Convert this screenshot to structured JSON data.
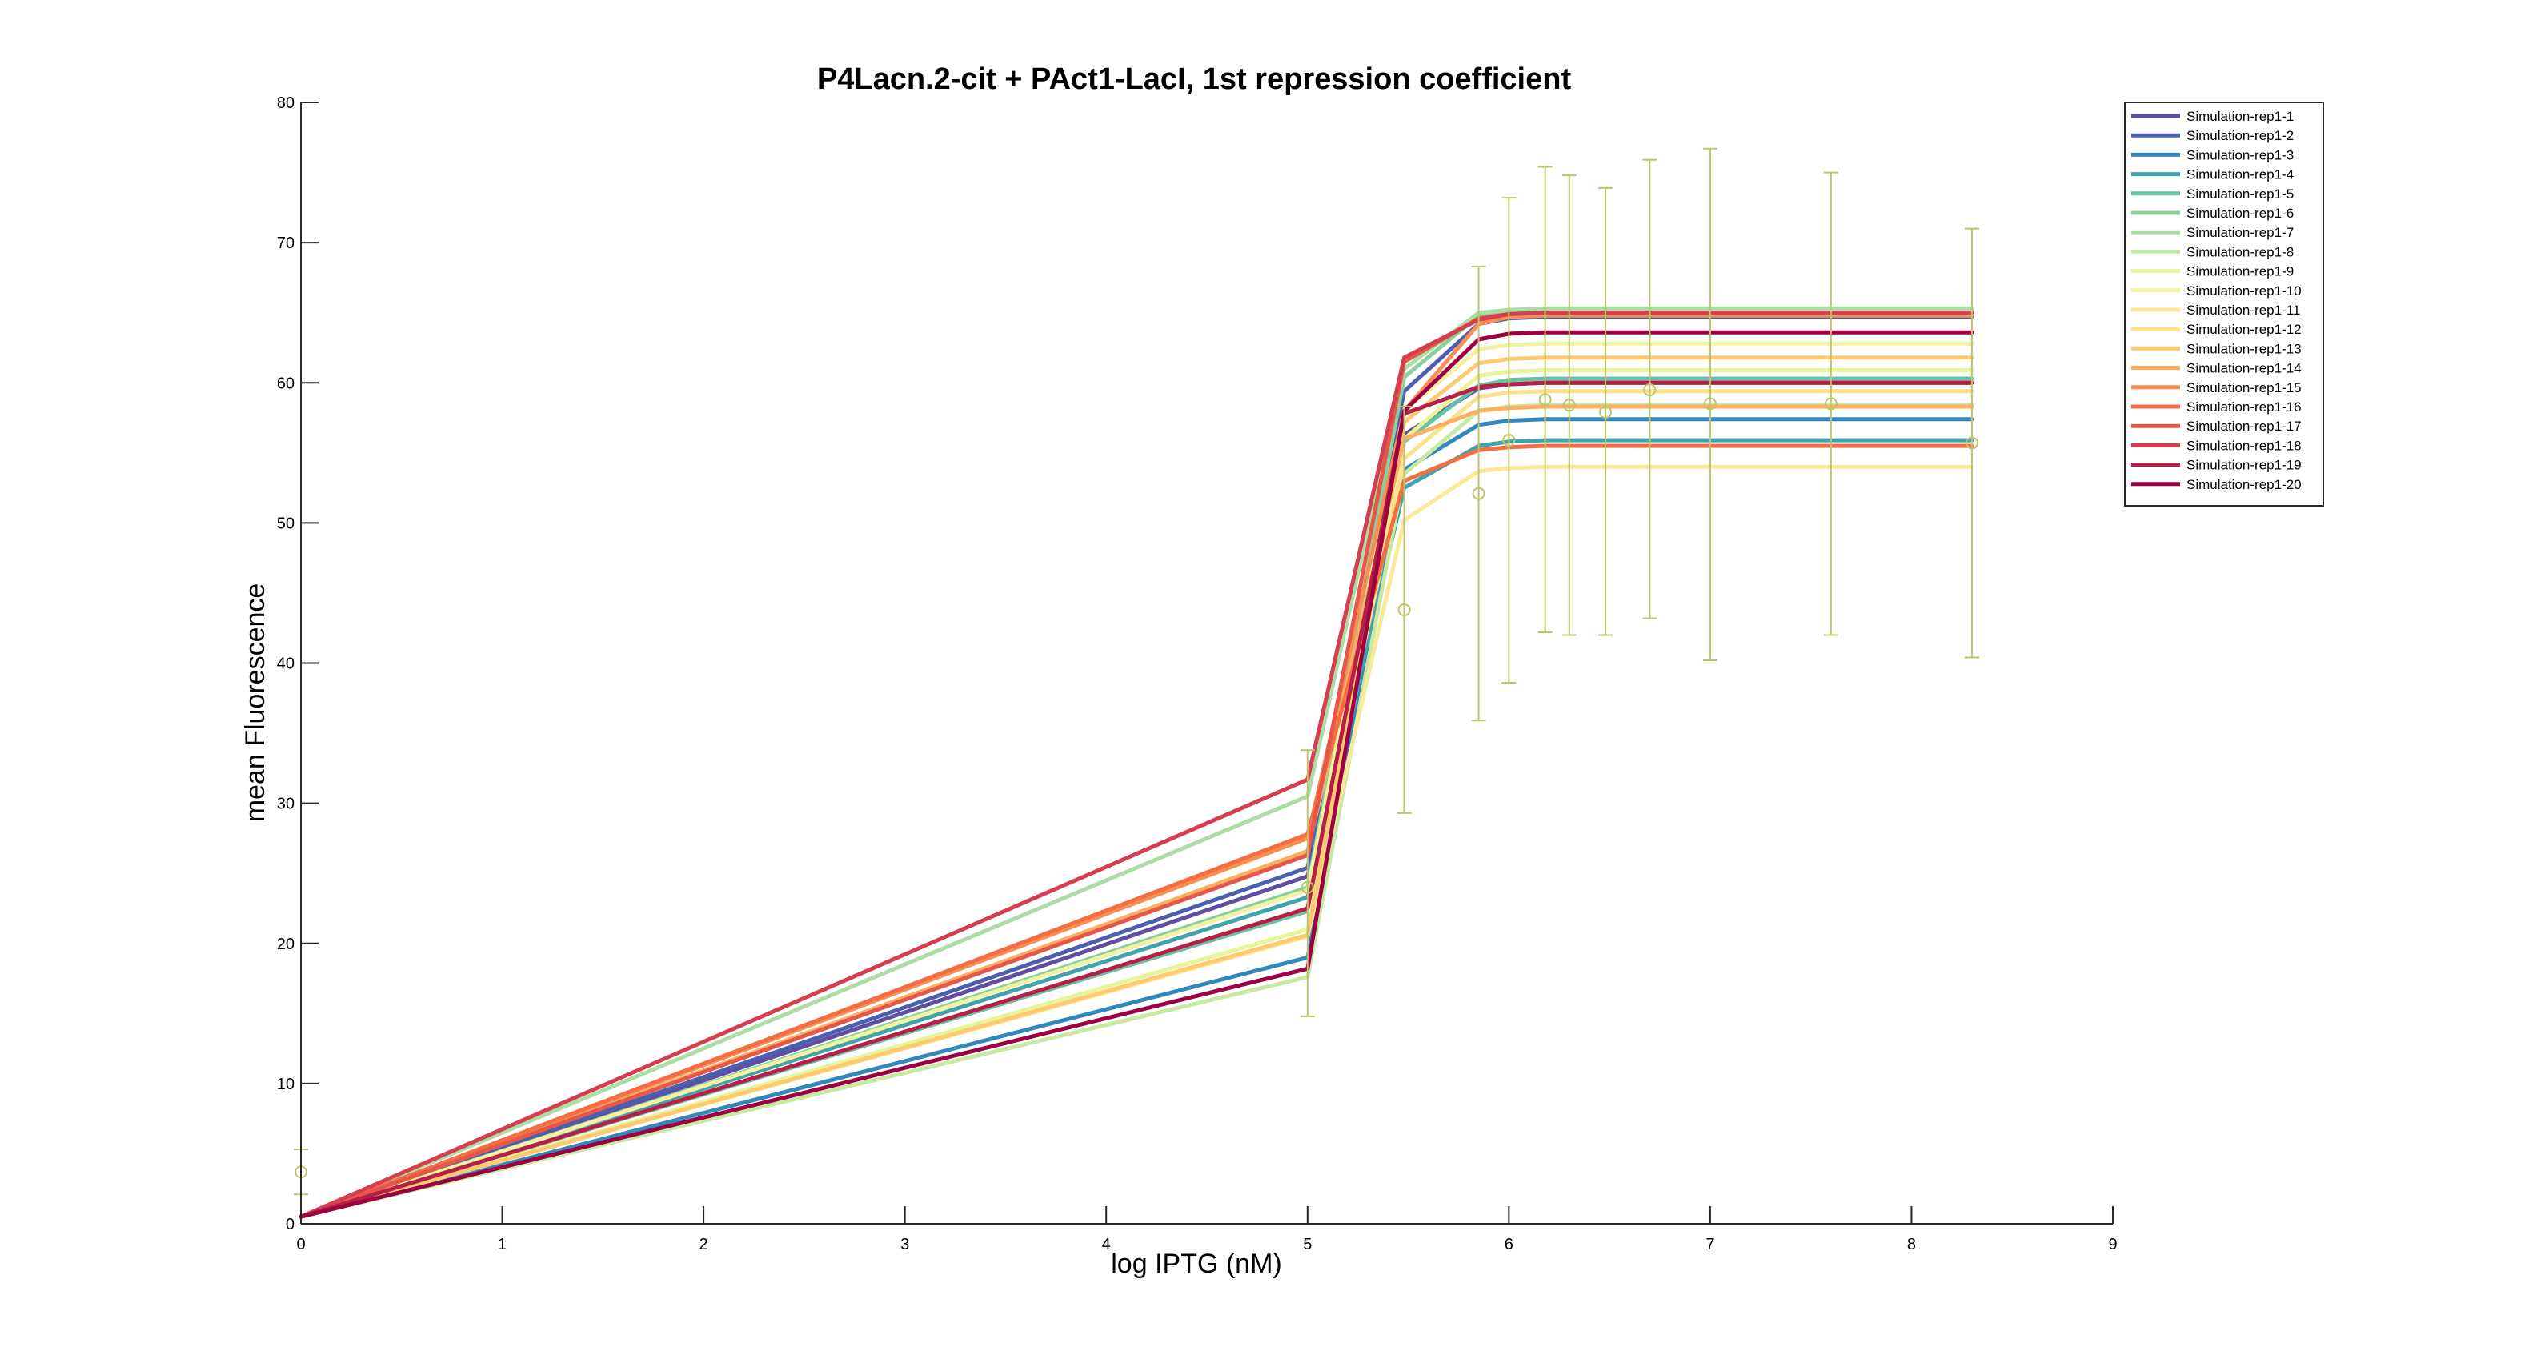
{
  "chart_data": {
    "type": "line",
    "title": "P4Lacn.2-cit + PAct1-LacI, 1st repression coefficient",
    "xlabel": "log IPTG (nM)",
    "ylabel": "mean Fluorescence",
    "xlim": [
      0,
      9
    ],
    "ylim": [
      0,
      80
    ],
    "xticks": [
      "0",
      "1",
      "2",
      "3",
      "4",
      "5",
      "6",
      "7",
      "8",
      "9"
    ],
    "yticks": [
      "0",
      "10",
      "20",
      "30",
      "40",
      "50",
      "60",
      "70",
      "80"
    ],
    "grid": false,
    "legend_position": "top-right",
    "x": [
      0,
      5,
      5.48,
      5.85,
      6,
      6.18,
      6.3,
      6.48,
      6.7,
      7,
      7.6,
      8.3
    ],
    "series": [
      {
        "name": "Simulation-rep1-1",
        "color": "#5e4fa2",
        "values": [
          0.5,
          24.8,
          56.3,
          59.6,
          59.9,
          60.0,
          60.0,
          60.0,
          60.0,
          60.0,
          60.0,
          60.0
        ]
      },
      {
        "name": "Simulation-rep1-2",
        "color": "#4a5fb0",
        "values": [
          0.5,
          25.4,
          59.4,
          64.2,
          64.6,
          64.7,
          64.7,
          64.7,
          64.7,
          64.7,
          64.7,
          64.7
        ]
      },
      {
        "name": "Simulation-rep1-3",
        "color": "#3288bd",
        "values": [
          0.5,
          19.0,
          53.8,
          57.0,
          57.3,
          57.4,
          57.4,
          57.4,
          57.4,
          57.4,
          57.4,
          57.4
        ]
      },
      {
        "name": "Simulation-rep1-4",
        "color": "#42a3ad",
        "values": [
          0.5,
          23.3,
          52.5,
          55.5,
          55.8,
          55.9,
          55.9,
          55.9,
          55.9,
          55.9,
          55.9,
          55.9
        ]
      },
      {
        "name": "Simulation-rep1-5",
        "color": "#66c2a5",
        "values": [
          0.5,
          22.3,
          55.8,
          59.8,
          60.2,
          60.3,
          60.3,
          60.3,
          60.3,
          60.3,
          60.3,
          60.3
        ]
      },
      {
        "name": "Simulation-rep1-6",
        "color": "#8ccf9f",
        "values": [
          0.5,
          24.0,
          60.4,
          64.8,
          65.1,
          65.2,
          65.2,
          65.2,
          65.2,
          65.2,
          65.2,
          65.2
        ]
      },
      {
        "name": "Simulation-rep1-7",
        "color": "#abdda4",
        "values": [
          0.5,
          30.5,
          61.0,
          65.0,
          65.2,
          65.3,
          65.3,
          65.3,
          65.3,
          65.3,
          65.3,
          65.3
        ]
      },
      {
        "name": "Simulation-rep1-8",
        "color": "#c7e9a1",
        "values": [
          0.5,
          17.6,
          53.5,
          58.0,
          58.3,
          58.4,
          58.4,
          58.4,
          58.4,
          58.4,
          58.4,
          58.4
        ]
      },
      {
        "name": "Simulation-rep1-9",
        "color": "#e6f598",
        "values": [
          0.5,
          21.0,
          56.0,
          60.5,
          60.8,
          60.9,
          60.9,
          60.9,
          60.9,
          60.9,
          60.9,
          60.9
        ]
      },
      {
        "name": "Simulation-rep1-10",
        "color": "#f2f2a0",
        "values": [
          0.5,
          23.8,
          58.0,
          62.4,
          62.7,
          62.8,
          62.8,
          62.8,
          62.8,
          62.8,
          62.8,
          62.8
        ]
      },
      {
        "name": "Simulation-rep1-11",
        "color": "#fbe99a",
        "values": [
          0.5,
          20.5,
          50.2,
          53.7,
          53.9,
          54.0,
          54.0,
          54.0,
          54.0,
          54.0,
          54.0,
          54.0
        ]
      },
      {
        "name": "Simulation-rep1-12",
        "color": "#fee08b",
        "values": [
          0.5,
          22.5,
          54.6,
          59.0,
          59.3,
          59.4,
          59.4,
          59.4,
          59.4,
          59.4,
          59.4,
          59.4
        ]
      },
      {
        "name": "Simulation-rep1-13",
        "color": "#fdca72",
        "values": [
          0.5,
          20.6,
          57.2,
          61.4,
          61.7,
          61.8,
          61.8,
          61.8,
          61.8,
          61.8,
          61.8,
          61.8
        ]
      },
      {
        "name": "Simulation-rep1-14",
        "color": "#fdae61",
        "values": [
          0.5,
          26.6,
          56.0,
          58.0,
          58.2,
          58.3,
          58.3,
          58.3,
          58.3,
          58.3,
          58.3,
          58.3
        ]
      },
      {
        "name": "Simulation-rep1-15",
        "color": "#f98e52",
        "values": [
          0.5,
          27.5,
          58.0,
          64.2,
          64.7,
          64.8,
          64.8,
          64.8,
          64.8,
          64.8,
          64.8,
          64.8
        ]
      },
      {
        "name": "Simulation-rep1-16",
        "color": "#f46d43",
        "values": [
          0.5,
          27.8,
          53.0,
          55.2,
          55.4,
          55.5,
          55.5,
          55.5,
          55.5,
          55.5,
          55.5,
          55.5
        ]
      },
      {
        "name": "Simulation-rep1-17",
        "color": "#e55749",
        "values": [
          0.5,
          26.3,
          61.5,
          64.6,
          64.9,
          65.0,
          65.0,
          65.0,
          65.0,
          65.0,
          65.0,
          65.0
        ]
      },
      {
        "name": "Simulation-rep1-18",
        "color": "#d53e4f",
        "values": [
          0.5,
          31.7,
          61.8,
          64.5,
          64.9,
          65.0,
          65.0,
          65.0,
          65.0,
          65.0,
          65.0,
          65.0
        ]
      },
      {
        "name": "Simulation-rep1-19",
        "color": "#b51f48",
        "values": [
          0.5,
          22.5,
          57.8,
          59.7,
          59.9,
          60.0,
          60.0,
          60.0,
          60.0,
          60.0,
          60.0,
          60.0
        ]
      },
      {
        "name": "Simulation-rep1-20",
        "color": "#9e0142",
        "values": [
          0.5,
          18.2,
          58.0,
          63.1,
          63.5,
          63.6,
          63.6,
          63.6,
          63.6,
          63.6,
          63.6,
          63.6
        ]
      }
    ],
    "experimental": {
      "color": "#bdc46a",
      "points": [
        {
          "x": 0,
          "y": 3.7,
          "low": 2.1,
          "high": 5.3
        },
        {
          "x": 5,
          "y": 24.0,
          "low": 14.8,
          "high": 33.8
        },
        {
          "x": 5.48,
          "y": 43.8,
          "low": 29.3,
          "high": 58.3
        },
        {
          "x": 5.85,
          "y": 52.1,
          "low": 35.9,
          "high": 68.3
        },
        {
          "x": 6.0,
          "y": 55.9,
          "low": 38.6,
          "high": 73.2
        },
        {
          "x": 6.18,
          "y": 58.8,
          "low": 42.2,
          "high": 75.4
        },
        {
          "x": 6.3,
          "y": 58.4,
          "low": 42.0,
          "high": 74.8
        },
        {
          "x": 6.48,
          "y": 57.9,
          "low": 42.0,
          "high": 73.9
        },
        {
          "x": 6.7,
          "y": 59.5,
          "low": 43.2,
          "high": 75.9
        },
        {
          "x": 7.0,
          "y": 58.5,
          "low": 40.2,
          "high": 76.7
        },
        {
          "x": 7.6,
          "y": 58.5,
          "low": 42.0,
          "high": 75.0
        },
        {
          "x": 8.3,
          "y": 55.7,
          "low": 40.4,
          "high": 71.0
        }
      ]
    }
  }
}
